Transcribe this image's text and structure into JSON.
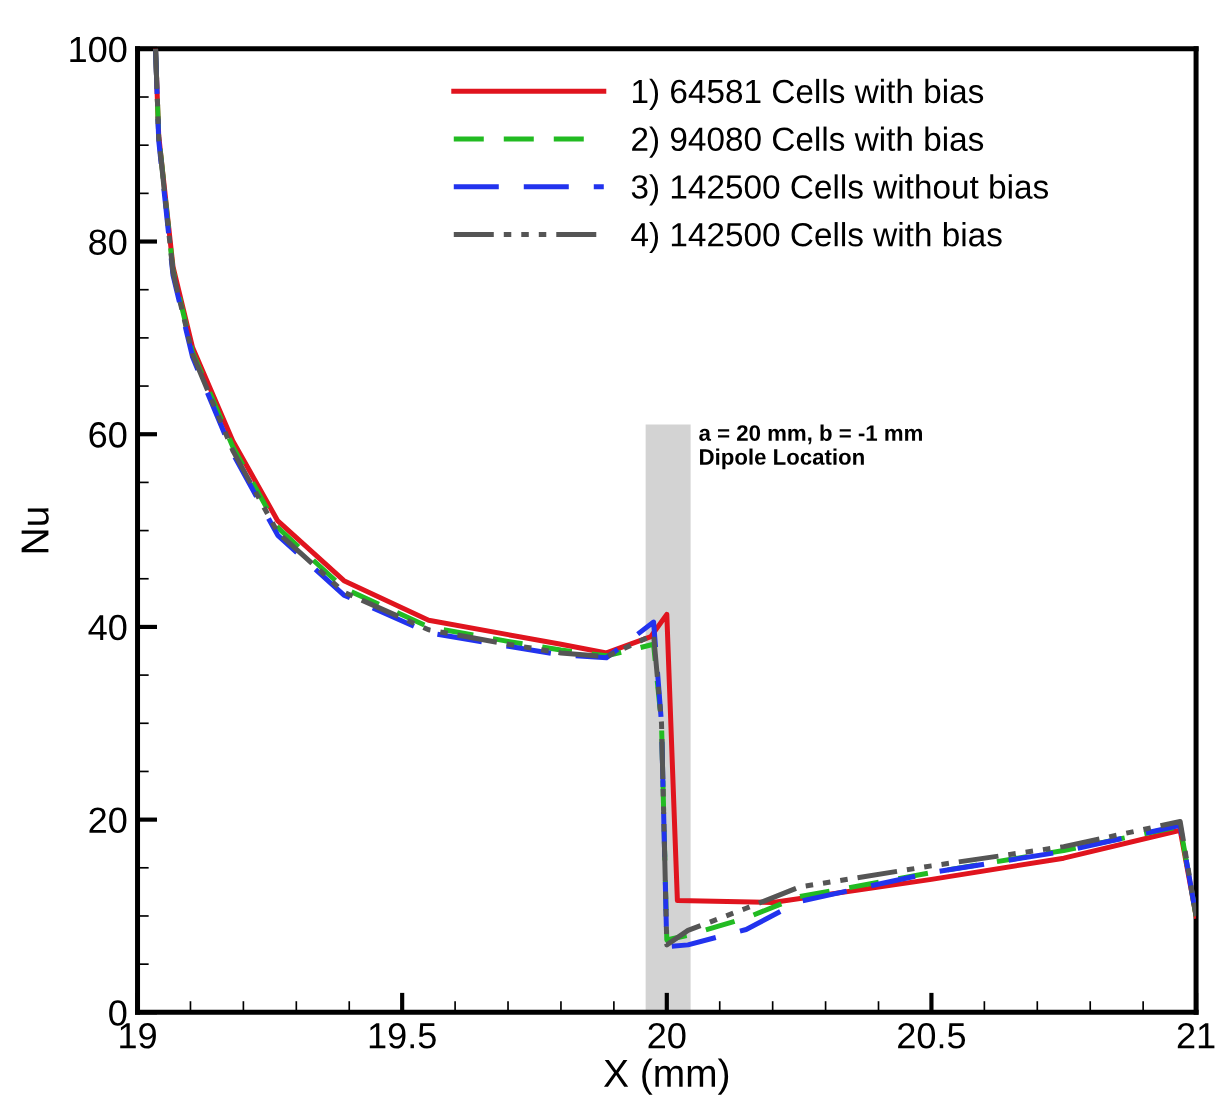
{
  "chart_data": {
    "type": "line",
    "xlabel": "X (mm)",
    "ylabel": "Nu",
    "xlim": [
      19,
      21
    ],
    "ylim": [
      0,
      100
    ],
    "xticks": [
      19,
      19.5,
      20,
      20.5,
      21
    ],
    "yticks": [
      0,
      20,
      40,
      60,
      80,
      100
    ],
    "grid": false,
    "legend": "top",
    "marker": "none",
    "bands": [
      {
        "axis": "x",
        "from": 19.96,
        "to": 20.045,
        "color": "#d3d3d3"
      }
    ],
    "annotations": [
      {
        "text": "a = 20 mm, b = -1 mm\nDipole Location",
        "x": 20.045,
        "y": 61
      }
    ],
    "series": [
      {
        "name": "1) 64581 Cells with bias",
        "color": "#e0141e",
        "line_style": "solid",
        "x": [
          19.034,
          19.04,
          19.067,
          19.104,
          19.18,
          19.265,
          19.39,
          19.55,
          19.7,
          19.8,
          19.886,
          19.97,
          20.0,
          20.02,
          20.2,
          20.5,
          20.75,
          20.97,
          21.0
        ],
        "values": [
          100,
          91,
          77.4,
          69,
          59.3,
          51,
          44.8,
          40.7,
          39.2,
          38.2,
          37.3,
          39,
          41.3,
          11.6,
          11.4,
          13.8,
          16,
          18.9,
          10
        ]
      },
      {
        "name": "2) 94080 Cells with bias",
        "color": "#22bb22",
        "line_style": "dashed",
        "x": [
          19.034,
          19.04,
          19.067,
          19.104,
          19.18,
          19.265,
          19.39,
          19.55,
          19.7,
          19.8,
          19.886,
          19.975,
          19.99,
          20.0,
          20.04,
          20.15,
          20.25,
          20.5,
          20.75,
          20.97,
          21.0
        ],
        "values": [
          100,
          91,
          77,
          68.5,
          58.7,
          50.3,
          44,
          40,
          38.5,
          37.6,
          37,
          38.2,
          30,
          7.5,
          8,
          9.8,
          12,
          14.5,
          16.8,
          19.3,
          10
        ]
      },
      {
        "name": "3) 142500 Cells without bias",
        "color": "#2233ee",
        "line_style": "dashed",
        "x": [
          19.034,
          19.04,
          19.067,
          19.104,
          19.18,
          19.265,
          19.39,
          19.55,
          19.7,
          19.8,
          19.886,
          19.975,
          19.99,
          20.0,
          20.04,
          20.15,
          20.25,
          20.5,
          20.75,
          20.97,
          21.0
        ],
        "values": [
          100,
          90.5,
          76.5,
          68,
          58,
          49.5,
          43.3,
          39.4,
          38,
          37.1,
          36.8,
          40.5,
          30,
          6.8,
          7,
          8.6,
          11.5,
          14.5,
          16.7,
          19.4,
          10
        ]
      },
      {
        "name": "4) 142500 Cells with bias",
        "color": "#555555",
        "line_style": "dashdot",
        "x": [
          19.034,
          19.04,
          19.067,
          19.104,
          19.18,
          19.265,
          19.39,
          19.55,
          19.7,
          19.8,
          19.886,
          19.975,
          19.99,
          20.0,
          20.04,
          20.15,
          20.25,
          20.5,
          20.75,
          20.97,
          21.0
        ],
        "values": [
          100,
          90.8,
          76.8,
          68.3,
          58.3,
          49.8,
          43.6,
          39.7,
          38.2,
          37.3,
          36.9,
          39.2,
          30,
          7,
          8.5,
          10.8,
          13,
          15.2,
          17.2,
          19.8,
          10
        ]
      }
    ]
  }
}
